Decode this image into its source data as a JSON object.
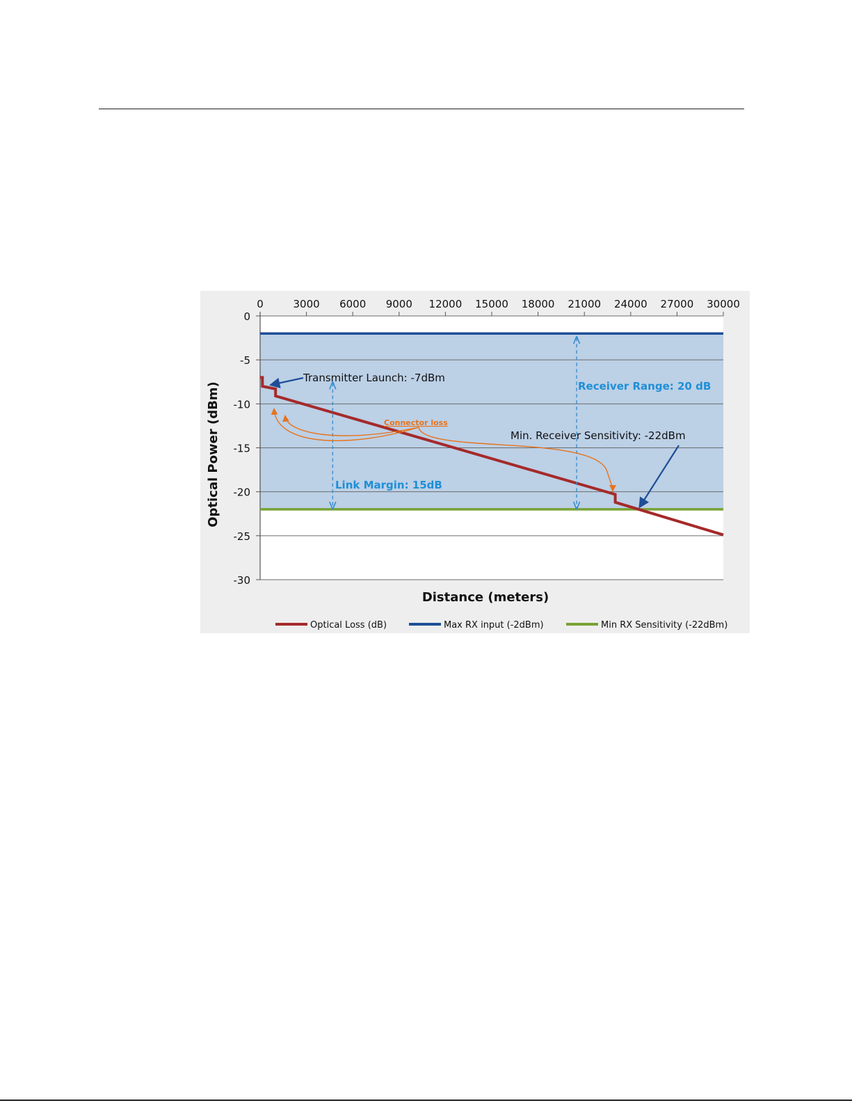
{
  "chart_data": {
    "type": "line",
    "title": "",
    "xlabel": "Distance (meters)",
    "ylabel": "Optical Power (dBm)",
    "xlim": [
      0,
      30000
    ],
    "ylim": [
      -30,
      0
    ],
    "x_ticks": [
      "0",
      "3000",
      "6000",
      "9000",
      "12000",
      "15000",
      "18000",
      "21000",
      "24000",
      "27000",
      "30000"
    ],
    "y_ticks": [
      "0",
      "-5",
      "-10",
      "-15",
      "-20",
      "-25",
      "-30"
    ],
    "x_ticks_position": "top",
    "grid": "horizontal",
    "shaded_band": {
      "from": -2,
      "to": -22,
      "color": "#bcd0e6"
    },
    "series": [
      {
        "name": "Optical Loss (dB)",
        "color": "#a52a2a",
        "points": [
          [
            0,
            -7
          ],
          [
            150,
            -7
          ],
          [
            150,
            -8
          ],
          [
            1000,
            -8.3
          ],
          [
            1000,
            -9.1
          ],
          [
            23000,
            -20.3
          ],
          [
            23000,
            -21.2
          ],
          [
            30000,
            -24.9
          ]
        ]
      },
      {
        "name": "Max RX input  (-2dBm)",
        "color": "#1f4e96",
        "points": [
          [
            0,
            -2
          ],
          [
            30000,
            -2
          ]
        ]
      },
      {
        "name": "Min RX Sensitivity (-22dBm)",
        "color": "#77a234",
        "points": [
          [
            0,
            -22
          ],
          [
            30000,
            -22
          ]
        ]
      }
    ],
    "legend_position": "bottom",
    "annotations": {
      "transmitter": {
        "text": "Transmitter  Launch: -7dBm",
        "anchor_x": 0,
        "anchor_y": -7
      },
      "receiver_range": {
        "text": "Receiver Range: 20 dB",
        "x": 20500,
        "from": -2,
        "to": -22
      },
      "link_margin": {
        "text": "Link Margin: 15dB",
        "x": 4700,
        "from": -7,
        "to": -22
      },
      "connector_loss": {
        "text": "Connector loss"
      },
      "min_sensitivity": {
        "text": "Min. Receiver Sensitivity: -22dBm",
        "anchor_x": 24500,
        "anchor_y": -22
      }
    }
  }
}
